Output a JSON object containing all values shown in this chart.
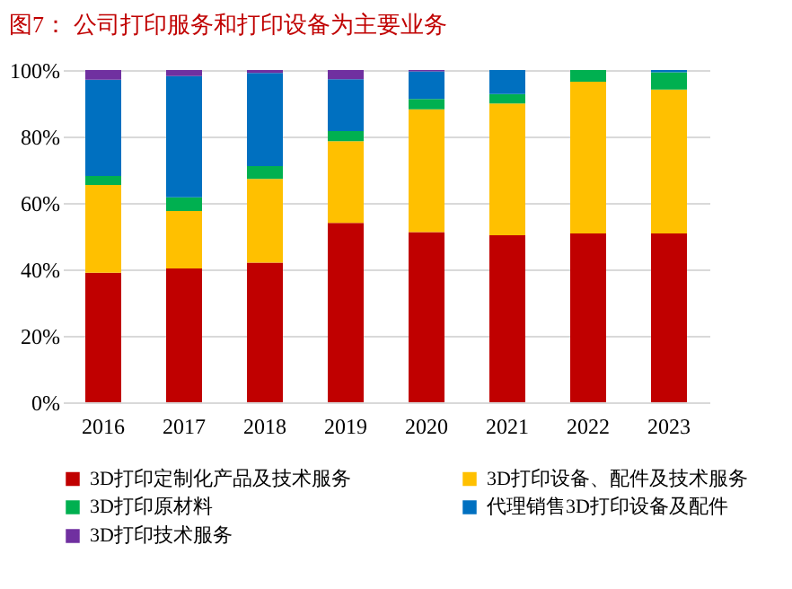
{
  "chart_data": {
    "type": "bar",
    "stacked": true,
    "title": "图7： 公司打印服务和打印设备为主要业务",
    "categories": [
      "2016",
      "2017",
      "2018",
      "2019",
      "2020",
      "2021",
      "2022",
      "2023"
    ],
    "series": [
      {
        "name": "3D打印定制化产品及技术服务",
        "color": "#c00000",
        "values": [
          39.0,
          40.3,
          42.0,
          54.0,
          51.2,
          50.3,
          50.8,
          50.8
        ]
      },
      {
        "name": "3D打印设备、配件及技术服务",
        "color": "#ffc000",
        "values": [
          26.4,
          17.3,
          25.2,
          24.6,
          37.0,
          39.6,
          45.7,
          43.3
        ]
      },
      {
        "name": "3D打印原材料",
        "color": "#00b050",
        "values": [
          2.7,
          4.1,
          3.9,
          3.0,
          3.1,
          2.9,
          3.5,
          5.2
        ]
      },
      {
        "name": "代理销售3D打印设备及配件",
        "color": "#0070c0",
        "values": [
          29.0,
          36.5,
          28.0,
          15.6,
          8.3,
          7.2,
          null,
          0.7
        ]
      },
      {
        "name": "3D打印技术服务",
        "color": "#7030a0",
        "values": [
          2.9,
          1.8,
          0.9,
          2.8,
          0.4,
          null,
          null,
          null
        ]
      }
    ],
    "ylim": [
      0,
      100
    ],
    "yticks": [
      {
        "value": 0,
        "label": "0%"
      },
      {
        "value": 20,
        "label": "20%"
      },
      {
        "value": 40,
        "label": "40%"
      },
      {
        "value": 60,
        "label": "60%"
      },
      {
        "value": 80,
        "label": "80%"
      },
      {
        "value": 100,
        "label": "100%"
      }
    ],
    "grid": "y",
    "legend": "bottom"
  }
}
